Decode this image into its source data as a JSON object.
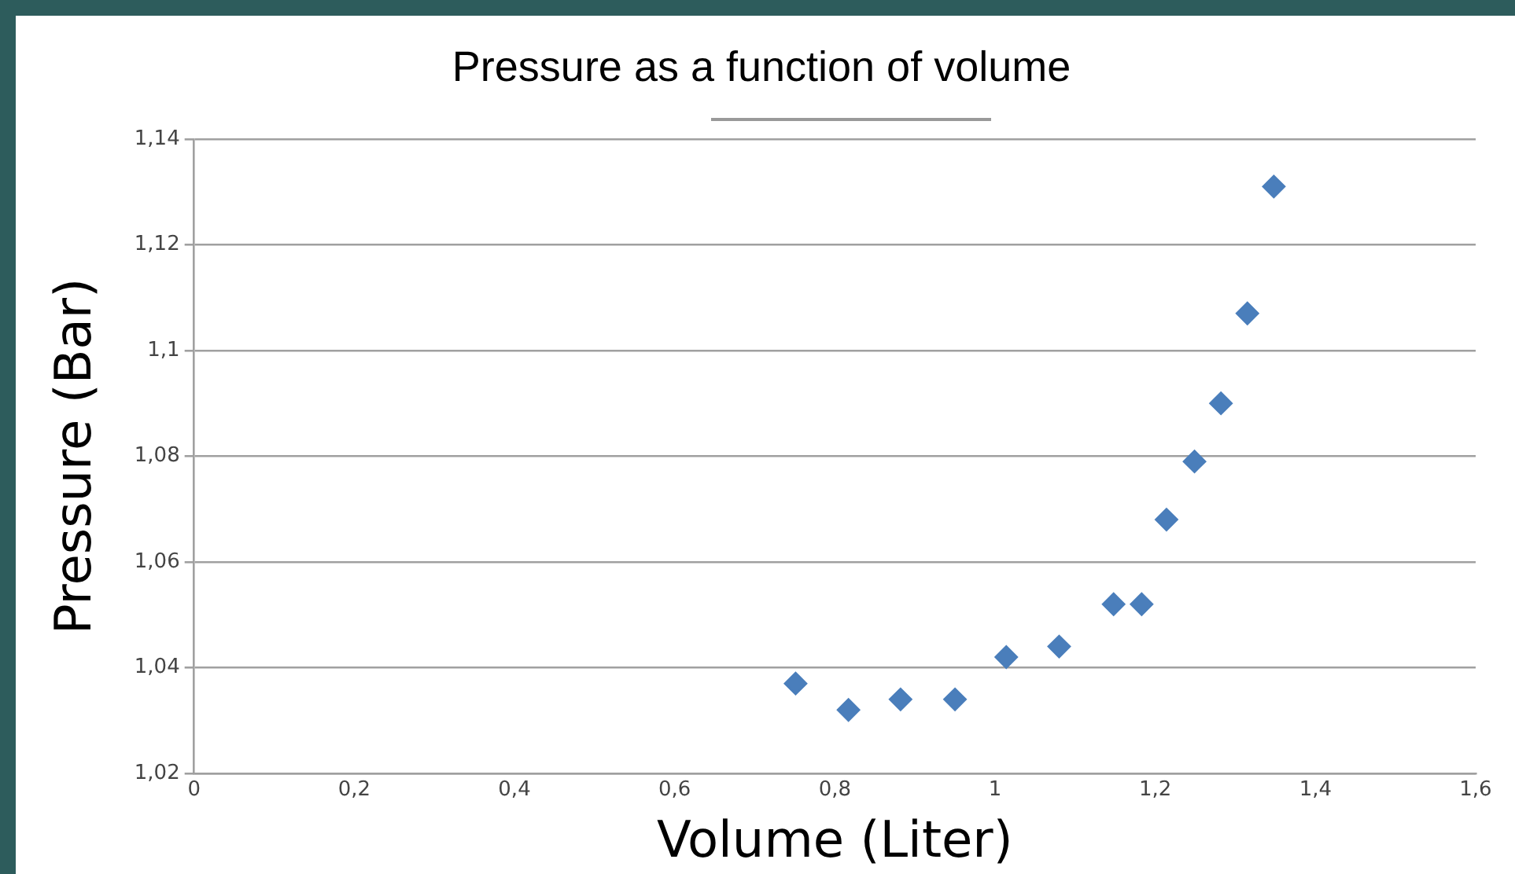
{
  "chart_data": {
    "type": "scatter",
    "title": "Pressure as a function of volume",
    "xlabel": "Volume (Liter)",
    "ylabel": "Pressure (Bar)",
    "series": [
      {
        "color": "#4a7ebb",
        "x": [
          0.751,
          0.817,
          0.882,
          0.95,
          1.014,
          1.08,
          1.148,
          1.183,
          1.214,
          1.249,
          1.282,
          1.315,
          1.348
        ],
        "values": [
          1.037,
          1.032,
          1.034,
          1.034,
          1.042,
          1.044,
          1.052,
          1.052,
          1.068,
          1.079,
          1.09,
          1.107,
          1.131
        ]
      }
    ],
    "marker": "diamond",
    "xlim": [
      0,
      1.6
    ],
    "ylim": [
      1.02,
      1.14
    ],
    "xticks": [
      0,
      {
        "value": 0.2,
        "label": "0,2"
      },
      {
        "value": 0.4,
        "label": "0,4"
      },
      {
        "value": 0.6,
        "label": "0,6"
      },
      {
        "value": 0.8,
        "label": "0,8"
      },
      1,
      {
        "value": 1.2,
        "label": "1,2"
      },
      {
        "value": 1.4,
        "label": "1,4"
      },
      {
        "value": 1.6,
        "label": "1,6"
      }
    ],
    "yticks": [
      {
        "value": 1.02,
        "label": "1,02"
      },
      {
        "value": 1.04,
        "label": "1,04"
      },
      {
        "value": 1.06,
        "label": "1,06"
      },
      {
        "value": 1.08,
        "label": "1,08"
      },
      {
        "value": 1.1,
        "label": "1,1"
      },
      {
        "value": 1.12,
        "label": "1,12"
      },
      {
        "value": 1.14,
        "label": "1,14"
      }
    ],
    "grid": "y",
    "legend": false
  }
}
